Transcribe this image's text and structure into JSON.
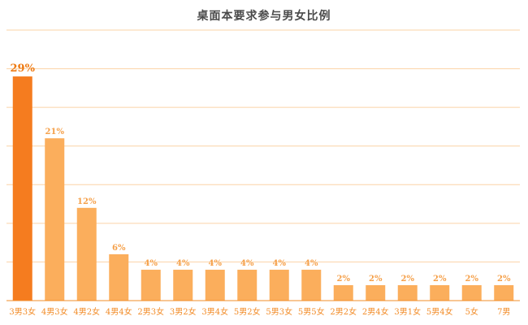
{
  "chart_data": {
    "type": "bar",
    "title": "桌面本要求参与男女比例",
    "xlabel": "",
    "ylabel": "",
    "categories": [
      "3男3女",
      "4男3女",
      "4男2女",
      "4男4女",
      "2男3女",
      "3男2女",
      "3男4女",
      "5男2女",
      "5男3女",
      "5男5女",
      "2男2女",
      "2男4女",
      "3男1女",
      "5男4女",
      "5女",
      "7男"
    ],
    "values": [
      29,
      21,
      12,
      6,
      4,
      4,
      4,
      4,
      4,
      4,
      2,
      2,
      2,
      2,
      2,
      2
    ],
    "data_labels": [
      "29%",
      "21%",
      "12%",
      "6%",
      "4%",
      "4%",
      "4%",
      "4%",
      "4%",
      "4%",
      "2%",
      "2%",
      "2%",
      "2%",
      "2%",
      "2%"
    ],
    "ylim": [
      0,
      35
    ],
    "grid": true,
    "colors": {
      "first_bar": "#f57c1f",
      "bar": "#fbae5c",
      "grid": "#fbd3a6",
      "axis": "#f28c28",
      "tick_text": "#f28c28",
      "label_text": "#f5a04a",
      "title_text": "#4a4a4a"
    }
  }
}
